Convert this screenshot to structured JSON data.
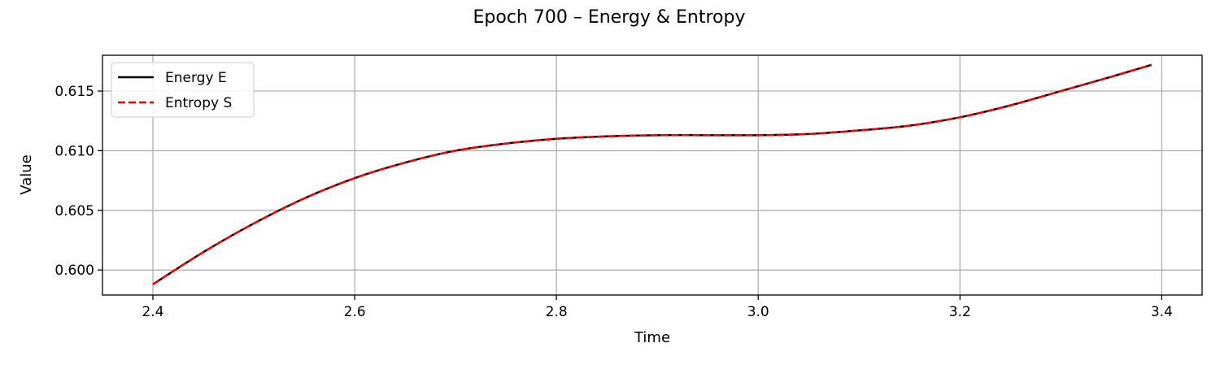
{
  "chart_data": {
    "type": "line",
    "title": "Epoch 700 – Energy & Entropy",
    "xlabel": "Time",
    "ylabel": "Value",
    "xlim": [
      2.35,
      3.44
    ],
    "ylim": [
      0.5979,
      0.618
    ],
    "x_ticks": [
      2.4,
      2.6,
      2.8,
      3.0,
      3.2,
      3.4
    ],
    "x_tick_labels": [
      "2.4",
      "2.6",
      "2.8",
      "3.0",
      "3.2",
      "3.4"
    ],
    "y_ticks": [
      0.6,
      0.605,
      0.61,
      0.615
    ],
    "y_tick_labels": [
      "0.600",
      "0.605",
      "0.610",
      "0.615"
    ],
    "grid": true,
    "legend_position": "top-left",
    "x": [
      2.4,
      2.45,
      2.5,
      2.55,
      2.6,
      2.65,
      2.7,
      2.75,
      2.8,
      2.85,
      2.9,
      2.95,
      3.0,
      3.05,
      3.1,
      3.15,
      3.2,
      3.25,
      3.3,
      3.35,
      3.39
    ],
    "series": [
      {
        "name": "Energy E",
        "color": "#000000",
        "style": "solid",
        "values": [
          0.5988,
          0.6015,
          0.6039,
          0.606,
          0.6077,
          0.609,
          0.61,
          0.6106,
          0.611,
          0.6112,
          0.6113,
          0.6113,
          0.6113,
          0.6114,
          0.6117,
          0.6121,
          0.6128,
          0.6138,
          0.615,
          0.6162,
          0.6172
        ]
      },
      {
        "name": "Entropy S",
        "color": "#ff0000",
        "style": "dashed",
        "values": [
          0.5988,
          0.6015,
          0.6039,
          0.606,
          0.6077,
          0.609,
          0.61,
          0.6106,
          0.611,
          0.6112,
          0.6113,
          0.6113,
          0.6113,
          0.6114,
          0.6117,
          0.6121,
          0.6128,
          0.6138,
          0.615,
          0.6162,
          0.6172
        ]
      }
    ]
  }
}
